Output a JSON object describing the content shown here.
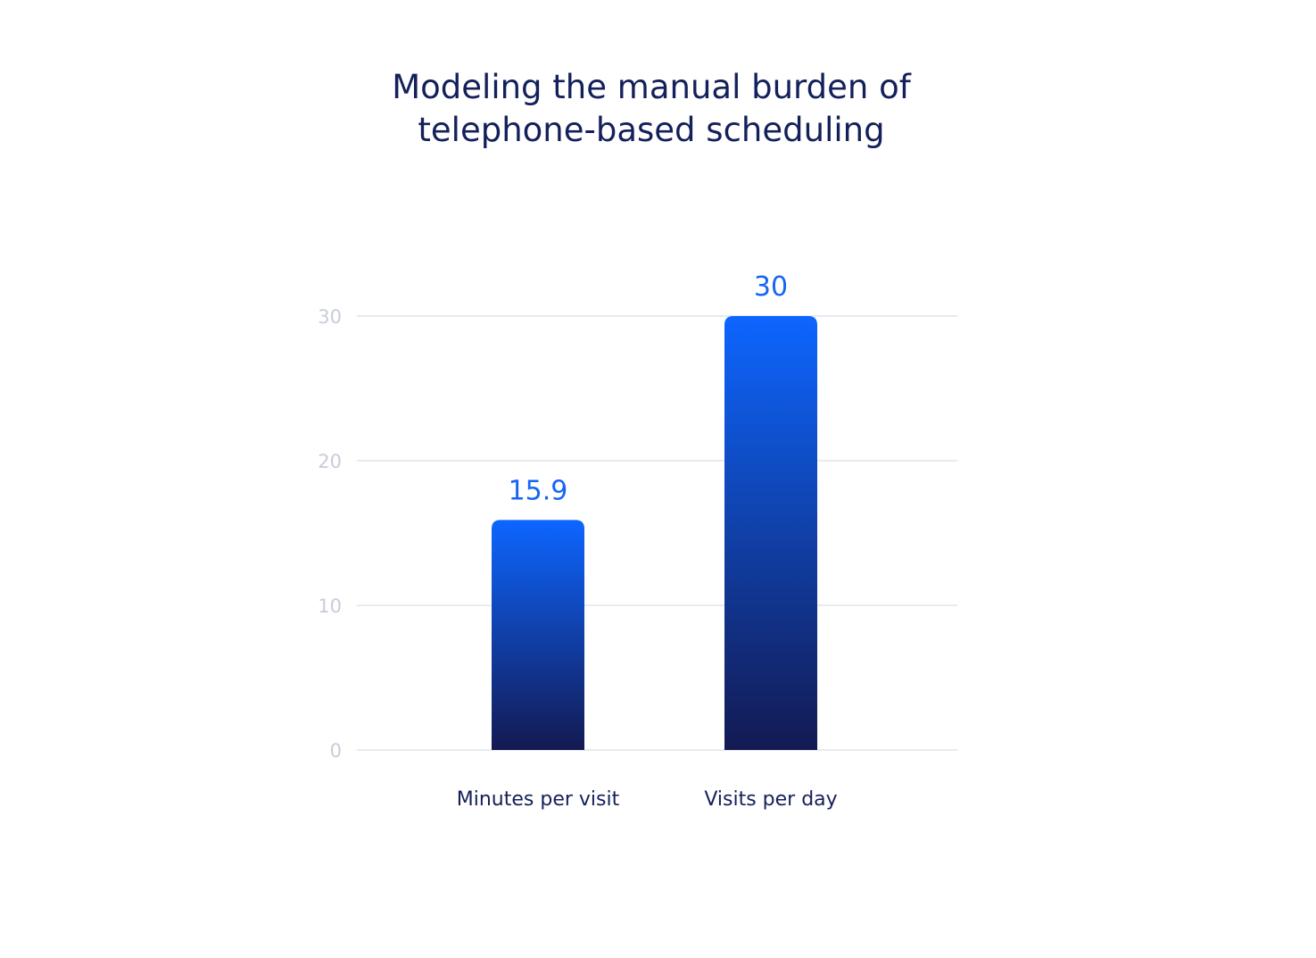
{
  "chart_data": {
    "type": "bar",
    "title_lines": [
      "Modeling the manual burden of",
      "telephone-based scheduling"
    ],
    "categories": [
      "Minutes per visit",
      "Visits per day"
    ],
    "values": [
      15.9,
      30
    ],
    "value_labels": [
      "15.9",
      "30"
    ],
    "yticks": [
      0,
      10,
      20,
      30
    ],
    "ylim": [
      0,
      30
    ],
    "grid": true,
    "legend": "none",
    "colors": {
      "bar_top": "#0d66ff",
      "bar_bottom": "#131a52",
      "value_label": "#1565f5",
      "title": "#14205a",
      "category_label": "#14205a",
      "tick_label": "#c9ccd9",
      "gridline": "#e9eaf2"
    }
  }
}
